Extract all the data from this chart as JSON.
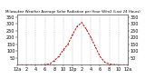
{
  "title": "Milwaukee Weather Average Solar Radiation per Hour W/m2 (Last 24 Hours)",
  "hours": [
    0,
    1,
    2,
    3,
    4,
    5,
    6,
    7,
    8,
    9,
    10,
    11,
    12,
    13,
    14,
    15,
    16,
    17,
    18,
    19,
    20,
    21,
    22,
    23,
    24
  ],
  "values": [
    0,
    0,
    0,
    0,
    0,
    0,
    2,
    5,
    30,
    60,
    110,
    150,
    220,
    280,
    310,
    260,
    200,
    130,
    60,
    20,
    5,
    2,
    0,
    0,
    0
  ],
  "line_color": "#cc0000",
  "bg_color": "#ffffff",
  "plot_bg": "#ffffff",
  "grid_color": "#aaaaaa",
  "y_ticks": [
    50,
    100,
    150,
    200,
    250,
    300,
    350
  ],
  "ylim": [
    0,
    370
  ],
  "xlim": [
    0,
    24
  ],
  "x_tick_positions": [
    0,
    2,
    4,
    6,
    8,
    10,
    12,
    14,
    16,
    18,
    20,
    22,
    24
  ],
  "x_tick_labels": [
    "12a",
    "2",
    "4",
    "6",
    "8",
    "10",
    "12p",
    "2",
    "4",
    "6",
    "8",
    "10",
    "12a"
  ],
  "ylabel_fontsize": 3.5,
  "xlabel_fontsize": 3.5,
  "title_fontsize": 2.8
}
